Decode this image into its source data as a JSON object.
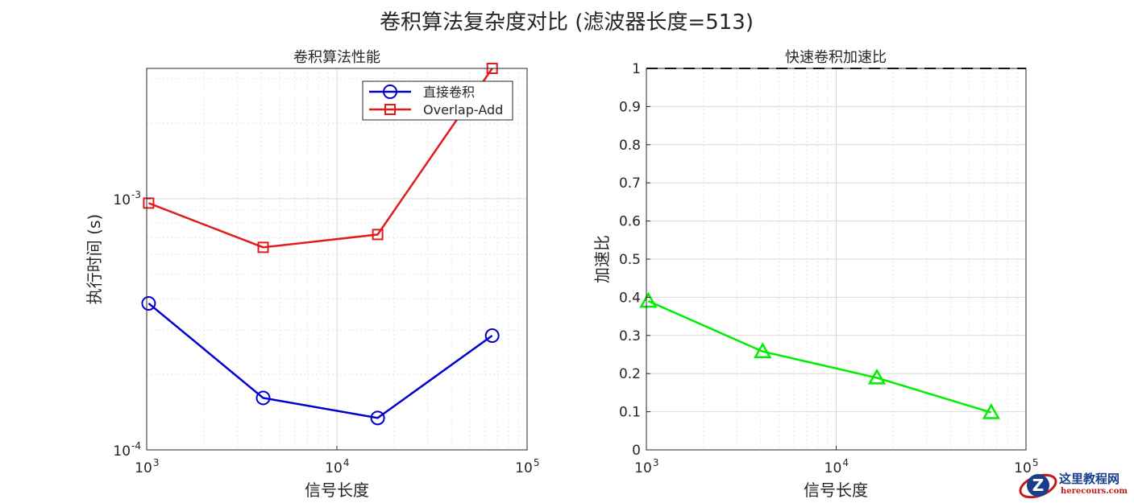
{
  "figure_title": "卷积算法复杂度对比 (滤波器长度=513)",
  "watermark": {
    "line1": "这里教程网",
    "line2": "herecours.com"
  },
  "chart_data": [
    {
      "type": "line",
      "title": "卷积算法性能",
      "xlabel": "信号长度",
      "ylabel": "执行时间 (s)",
      "xscale": "log",
      "yscale": "log",
      "xlim": [
        1000,
        100000
      ],
      "ylim": [
        0.0001,
        0.0033
      ],
      "x_ticks": [
        {
          "base": "10",
          "exp": "3"
        },
        {
          "base": "10",
          "exp": "4"
        },
        {
          "base": "10",
          "exp": "5"
        }
      ],
      "y_ticks": [
        {
          "base": "10",
          "exp": "-4"
        },
        {
          "base": "10",
          "exp": "-3"
        }
      ],
      "grid": true,
      "minor_grid": true,
      "legend_position": "top-right",
      "x": [
        1024,
        4096,
        16384,
        65536
      ],
      "series": [
        {
          "name": "直接卷积",
          "color": "#0000cc",
          "marker": "circle",
          "values": [
            0.000383,
            0.000161,
            0.000134,
            0.000285
          ]
        },
        {
          "name": "Overlap-Add",
          "color": "#e31a1c",
          "marker": "square",
          "values": [
            0.00096,
            0.00064,
            0.00072,
            0.0033
          ]
        }
      ]
    },
    {
      "type": "line",
      "title": "快速卷积加速比",
      "xlabel": "信号长度",
      "ylabel": "加速比",
      "xscale": "log",
      "yscale": "linear",
      "xlim": [
        1000,
        100000
      ],
      "ylim": [
        0,
        1
      ],
      "x_ticks": [
        {
          "base": "10",
          "exp": "3"
        },
        {
          "base": "10",
          "exp": "4"
        },
        {
          "base": "10",
          "exp": "5"
        }
      ],
      "y_ticks": [
        "0",
        "0.1",
        "0.2",
        "0.3",
        "0.4",
        "0.5",
        "0.6",
        "0.7",
        "0.8",
        "0.9",
        "1"
      ],
      "grid": true,
      "reference_line": {
        "y": 1,
        "style": "dashed",
        "color": "#000000"
      },
      "x": [
        1024,
        4096,
        16384,
        65536
      ],
      "series": [
        {
          "color": "#00ee00",
          "marker": "triangle",
          "values": [
            0.39,
            0.258,
            0.189,
            0.098
          ]
        }
      ]
    }
  ]
}
